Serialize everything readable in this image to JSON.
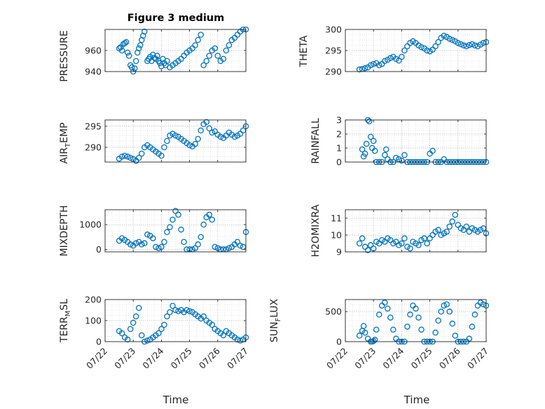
{
  "figure": {
    "title": "Figure 3 medium",
    "marker_color": "#0072BD"
  },
  "x_axis": {
    "label": "Time",
    "ticks": [
      "07/22",
      "07/23",
      "07/24",
      "07/25",
      "07/26",
      "07/27"
    ]
  },
  "chart_data": [
    {
      "type": "scatter",
      "ylabel": "PRESSURE",
      "xlim": [
        0,
        5
      ],
      "ylim": [
        940,
        980
      ],
      "yticks": [
        940,
        960
      ],
      "ytick_labels": [
        "940",
        "960"
      ],
      "grid": true,
      "x": [
        0.5,
        0.55,
        0.6,
        0.65,
        0.7,
        0.75,
        0.8,
        0.85,
        0.9,
        0.95,
        1.0,
        1.05,
        1.1,
        1.15,
        1.2,
        1.25,
        1.3,
        1.35,
        1.4,
        1.5,
        1.55,
        1.6,
        1.65,
        1.7,
        1.75,
        1.8,
        1.85,
        1.9,
        1.95,
        2.0,
        2.05,
        2.1,
        2.15,
        2.2,
        2.3,
        2.4,
        2.5,
        2.6,
        2.7,
        2.8,
        2.9,
        3.0,
        3.1,
        3.2,
        3.3,
        3.4,
        3.5,
        3.6,
        3.7,
        3.8,
        3.9,
        4.0,
        4.1,
        4.2,
        4.3,
        4.4,
        4.5,
        4.6,
        4.7,
        4.8,
        4.9,
        5.0
      ],
      "y": [
        962,
        963,
        960,
        966,
        967,
        968,
        958,
        955,
        946,
        944,
        940,
        943,
        950,
        958,
        962,
        965,
        970,
        974,
        978,
        950,
        952,
        954,
        950,
        956,
        953,
        952,
        955,
        950,
        948,
        945,
        952,
        948,
        946,
        950,
        944,
        946,
        948,
        950,
        952,
        955,
        958,
        960,
        962,
        965,
        970,
        975,
        946,
        950,
        955,
        960,
        962,
        955,
        950,
        952,
        960,
        965,
        970,
        972,
        975,
        978,
        980,
        980
      ]
    },
    {
      "type": "scatter",
      "ylabel": "THETA",
      "xlim": [
        0,
        5
      ],
      "ylim": [
        290,
        300
      ],
      "yticks": [
        290,
        295,
        300
      ],
      "ytick_labels": [
        "290",
        "295",
        "300"
      ],
      "grid": true,
      "x": [
        0.5,
        0.6,
        0.7,
        0.8,
        0.9,
        1.0,
        1.1,
        1.2,
        1.3,
        1.4,
        1.5,
        1.6,
        1.7,
        1.8,
        1.9,
        2.0,
        2.1,
        2.2,
        2.3,
        2.4,
        2.5,
        2.6,
        2.7,
        2.8,
        2.9,
        3.0,
        3.1,
        3.2,
        3.3,
        3.4,
        3.5,
        3.6,
        3.7,
        3.8,
        3.9,
        4.0,
        4.1,
        4.2,
        4.3,
        4.4,
        4.5,
        4.6,
        4.7,
        4.8,
        4.9,
        5.0
      ],
      "y": [
        290.5,
        290.6,
        290.8,
        291.0,
        291.5,
        291.8,
        292.0,
        291.5,
        291.8,
        292.5,
        292.8,
        293.2,
        293.5,
        293.0,
        292.6,
        293.5,
        295.0,
        296.0,
        296.8,
        297.2,
        296.8,
        296.2,
        295.8,
        295.5,
        295.0,
        294.8,
        295.2,
        296.0,
        297.0,
        298.0,
        298.5,
        298.2,
        297.8,
        297.5,
        297.2,
        296.8,
        296.5,
        296.2,
        296.0,
        296.3,
        296.5,
        296.2,
        296.0,
        296.4,
        296.8,
        297.0
      ]
    },
    {
      "type": "scatter",
      "ylabel": "AIR_TEMP",
      "xlim": [
        0,
        5
      ],
      "ylim": [
        286.5,
        296.5
      ],
      "yticks": [
        290,
        295
      ],
      "ytick_labels": [
        "290",
        "295"
      ],
      "grid": true,
      "x": [
        0.5,
        0.6,
        0.7,
        0.8,
        0.9,
        1.0,
        1.1,
        1.2,
        1.3,
        1.4,
        1.5,
        1.6,
        1.7,
        1.8,
        1.9,
        2.0,
        2.1,
        2.2,
        2.3,
        2.4,
        2.5,
        2.6,
        2.7,
        2.8,
        2.9,
        3.0,
        3.1,
        3.2,
        3.3,
        3.4,
        3.5,
        3.6,
        3.7,
        3.8,
        3.9,
        4.0,
        4.1,
        4.2,
        4.3,
        4.4,
        4.5,
        4.6,
        4.7,
        4.8,
        4.9,
        5.0
      ],
      "y": [
        287.3,
        287.8,
        288.0,
        287.8,
        287.5,
        287.2,
        286.8,
        287.5,
        288.5,
        290.0,
        290.5,
        290.0,
        289.5,
        289.0,
        288.5,
        288.0,
        290.0,
        291.5,
        292.8,
        293.2,
        292.8,
        292.5,
        292.0,
        291.5,
        291.0,
        290.5,
        290.2,
        290.8,
        292.0,
        294.0,
        295.5,
        296.0,
        294.5,
        293.5,
        293.8,
        293.0,
        292.5,
        292.2,
        292.8,
        293.5,
        293.0,
        292.5,
        292.8,
        293.2,
        294.0,
        295.0
      ]
    },
    {
      "type": "scatter",
      "ylabel": "RAINFALL",
      "xlim": [
        0,
        5
      ],
      "ylim": [
        0,
        3
      ],
      "yticks": [
        0,
        1,
        2,
        3
      ],
      "ytick_labels": [
        "0",
        "1",
        "2",
        "3"
      ],
      "grid": true,
      "x": [
        0.6,
        0.65,
        0.7,
        0.75,
        0.8,
        0.85,
        0.9,
        0.95,
        1.0,
        1.05,
        1.1,
        1.2,
        1.3,
        1.4,
        1.45,
        1.5,
        1.6,
        1.7,
        1.8,
        1.9,
        2.0,
        2.1,
        2.2,
        2.3,
        2.4,
        2.5,
        2.6,
        2.7,
        2.8,
        2.9,
        3.0,
        3.1,
        3.2,
        3.3,
        3.4,
        3.5,
        3.6,
        3.7,
        3.8,
        3.9,
        4.0,
        4.1,
        4.2,
        4.3,
        4.4,
        4.5,
        4.6,
        4.7,
        4.8,
        4.9,
        5.0
      ],
      "y": [
        0.9,
        0.4,
        0.6,
        1.3,
        3.0,
        2.9,
        1.8,
        1.0,
        1.5,
        0.8,
        0,
        0,
        0,
        0.5,
        0.9,
        0.2,
        0,
        0,
        0.3,
        0.2,
        0.1,
        0.5,
        0,
        0,
        0,
        0,
        0,
        0,
        0,
        0,
        0.6,
        0.8,
        0,
        0,
        0,
        0.2,
        0,
        0,
        0,
        0,
        0,
        0,
        0,
        0,
        0,
        0,
        0,
        0,
        0,
        0,
        0
      ]
    },
    {
      "type": "scatter",
      "ylabel": "MIXDEPTH",
      "xlim": [
        0,
        5
      ],
      "ylim": [
        -100,
        1600
      ],
      "yticks": [
        0,
        1000
      ],
      "ytick_labels": [
        "0",
        "1000"
      ],
      "grid": true,
      "x": [
        0.5,
        0.6,
        0.7,
        0.8,
        0.9,
        1.0,
        1.1,
        1.2,
        1.3,
        1.4,
        1.5,
        1.6,
        1.7,
        1.8,
        1.9,
        2.0,
        2.1,
        2.2,
        2.3,
        2.4,
        2.5,
        2.6,
        2.7,
        2.8,
        2.9,
        3.0,
        3.1,
        3.2,
        3.3,
        3.4,
        3.5,
        3.6,
        3.7,
        3.8,
        3.9,
        4.0,
        4.1,
        4.2,
        4.3,
        4.4,
        4.5,
        4.6,
        4.7,
        4.8,
        4.9,
        5.0
      ],
      "y": [
        350,
        450,
        380,
        300,
        200,
        150,
        250,
        300,
        200,
        250,
        600,
        550,
        450,
        100,
        50,
        100,
        300,
        700,
        900,
        1200,
        1550,
        1400,
        800,
        300,
        0,
        0,
        0,
        50,
        200,
        500,
        1000,
        1300,
        1400,
        1200,
        100,
        50,
        0,
        0,
        0,
        50,
        100,
        200,
        300,
        150,
        100,
        700
      ]
    },
    {
      "type": "scatter",
      "ylabel": "H2OMIXRA",
      "xlim": [
        0,
        5
      ],
      "ylim": [
        9,
        11.5
      ],
      "yticks": [
        9,
        10,
        11
      ],
      "ytick_labels": [
        "9",
        "10",
        "11"
      ],
      "grid": true,
      "x": [
        0.5,
        0.6,
        0.7,
        0.8,
        0.9,
        1.0,
        1.1,
        1.2,
        1.3,
        1.4,
        1.5,
        1.6,
        1.7,
        1.8,
        1.9,
        2.0,
        2.1,
        2.2,
        2.3,
        2.4,
        2.5,
        2.6,
        2.7,
        2.8,
        2.9,
        3.0,
        3.1,
        3.2,
        3.3,
        3.4,
        3.5,
        3.6,
        3.7,
        3.8,
        3.9,
        4.0,
        4.1,
        4.2,
        4.3,
        4.4,
        4.5,
        4.6,
        4.7,
        4.8,
        4.9,
        5.0
      ],
      "y": [
        9.5,
        9.8,
        9.3,
        9.1,
        9.4,
        9.2,
        9.6,
        9.5,
        9.7,
        9.6,
        9.8,
        9.7,
        9.5,
        9.6,
        9.4,
        9.5,
        9.8,
        9.3,
        9.2,
        9.6,
        9.5,
        9.4,
        9.7,
        9.8,
        9.5,
        9.8,
        10.0,
        10.2,
        10.3,
        10.0,
        10.1,
        10.2,
        10.5,
        10.8,
        11.2,
        10.6,
        10.4,
        10.3,
        10.5,
        10.2,
        10.4,
        10.3,
        10.2,
        10.3,
        10.4,
        10.1
      ]
    },
    {
      "type": "scatter",
      "ylabel": "TERR_MSL",
      "xlim": [
        0,
        5
      ],
      "ylim": [
        0,
        200
      ],
      "yticks": [
        0,
        100,
        200
      ],
      "ytick_labels": [
        "0",
        "100",
        "200"
      ],
      "grid": true,
      "x": [
        0.5,
        0.6,
        0.7,
        0.8,
        0.9,
        1.0,
        1.1,
        1.2,
        1.3,
        1.4,
        1.5,
        1.6,
        1.7,
        1.8,
        1.9,
        2.0,
        2.1,
        2.2,
        2.3,
        2.4,
        2.5,
        2.6,
        2.7,
        2.8,
        2.9,
        3.0,
        3.1,
        3.2,
        3.3,
        3.4,
        3.5,
        3.6,
        3.7,
        3.8,
        3.9,
        4.0,
        4.1,
        4.2,
        4.3,
        4.4,
        4.5,
        4.6,
        4.7,
        4.8,
        4.9,
        5.0
      ],
      "y": [
        50,
        40,
        20,
        10,
        60,
        90,
        120,
        160,
        30,
        0,
        5,
        10,
        20,
        30,
        40,
        60,
        80,
        120,
        140,
        170,
        150,
        145,
        150,
        140,
        150,
        145,
        140,
        130,
        120,
        110,
        120,
        100,
        90,
        80,
        60,
        50,
        40,
        30,
        50,
        40,
        30,
        20,
        10,
        5,
        10,
        20
      ]
    },
    {
      "type": "scatter",
      "ylabel": "SUN_FLUX",
      "xlim": [
        0,
        5
      ],
      "ylim": [
        0,
        700
      ],
      "yticks": [
        0,
        500
      ],
      "ytick_labels": [
        "0",
        "500"
      ],
      "grid": true,
      "x": [
        0.5,
        0.6,
        0.65,
        0.7,
        0.8,
        0.9,
        0.95,
        1.0,
        1.05,
        1.1,
        1.2,
        1.3,
        1.4,
        1.5,
        1.6,
        1.7,
        1.8,
        1.9,
        2.0,
        2.1,
        2.2,
        2.3,
        2.4,
        2.5,
        2.6,
        2.7,
        2.8,
        2.9,
        3.0,
        3.1,
        3.2,
        3.3,
        3.4,
        3.5,
        3.6,
        3.7,
        3.8,
        3.9,
        4.0,
        4.1,
        4.2,
        4.3,
        4.4,
        4.5,
        4.6,
        4.7,
        4.8,
        4.9,
        5.0
      ],
      "y": [
        100,
        180,
        260,
        150,
        50,
        0,
        0,
        10,
        30,
        200,
        450,
        600,
        650,
        550,
        400,
        200,
        50,
        0,
        0,
        0,
        250,
        450,
        600,
        550,
        400,
        200,
        0,
        0,
        0,
        0,
        150,
        350,
        500,
        600,
        620,
        500,
        300,
        100,
        0,
        0,
        0,
        0,
        50,
        250,
        450,
        600,
        650,
        620,
        600
      ]
    }
  ]
}
